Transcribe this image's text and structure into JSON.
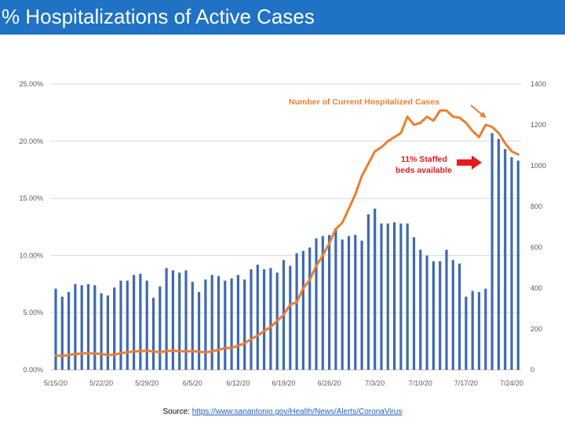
{
  "page": {
    "title": "% Hospitalizations of Active Cases",
    "source_label": "Source:",
    "source_link": "https://www.sanantonio.gov/Health/News/Alerts/CoronaVirus"
  },
  "colors": {
    "title_bar": "#1f72c4",
    "bars": "#3f69b0",
    "line": "#ed7d31",
    "annotation_red": "#e41a1c",
    "annotation_orange": "#ed7d31"
  },
  "chart_data": {
    "type": "bar",
    "title": "",
    "x_tick_labels": [
      "5/15/20",
      "5/22/20",
      "5/29/20",
      "6/5/20",
      "6/12/20",
      "6/19/20",
      "6/26/20",
      "7/3/20",
      "7/10/20",
      "7/17/20",
      "7/24/20"
    ],
    "x_tick_every": 7,
    "y_left": {
      "ticks": [
        "0.00%",
        "5.00%",
        "10.00%",
        "15.00%",
        "20.00%",
        "25.00%"
      ],
      "min": 0,
      "max": 25
    },
    "y_right": {
      "ticks": [
        "0",
        "200",
        "400",
        "600",
        "800",
        "1000",
        "1200",
        "1400"
      ],
      "min": 0,
      "max": 1400
    },
    "grid": "horizontal",
    "series": [
      {
        "axis": "left",
        "kind": "bar",
        "unit": "%",
        "values": [
          7.1,
          6.4,
          6.8,
          7.5,
          7.4,
          7.5,
          7.4,
          6.7,
          6.5,
          7.2,
          7.8,
          7.8,
          8.3,
          8.4,
          7.8,
          6.3,
          7.3,
          8.9,
          8.7,
          8.5,
          8.7,
          7.7,
          6.8,
          7.9,
          8.3,
          8.2,
          7.8,
          8.0,
          8.3,
          7.9,
          8.8,
          9.2,
          8.8,
          8.9,
          8.5,
          9.6,
          9.1,
          10.2,
          10.4,
          10.7,
          11.5,
          11.7,
          11.8,
          12.4,
          11.4,
          11.7,
          11.8,
          11.3,
          13.6,
          14.1,
          12.8,
          12.8,
          12.9,
          12.8,
          12.8,
          11.6,
          10.5,
          10.0,
          9.5,
          9.5,
          10.5,
          9.6,
          9.3,
          6.4,
          6.9,
          6.8,
          7.1,
          20.7,
          20.2,
          19.3,
          18.6,
          18.3
        ]
      },
      {
        "axis": "right",
        "kind": "line",
        "name": "Number of  Current Hospitalized Cases",
        "values": [
          70,
          68,
          72,
          78,
          80,
          82,
          80,
          78,
          72,
          74,
          82,
          86,
          90,
          92,
          93,
          90,
          86,
          92,
          94,
          92,
          90,
          92,
          88,
          86,
          90,
          98,
          106,
          108,
          118,
          130,
          150,
          168,
          190,
          210,
          240,
          270,
          320,
          330,
          400,
          440,
          510,
          560,
          620,
          690,
          720,
          790,
          860,
          950,
          1010,
          1070,
          1090,
          1120,
          1140,
          1160,
          1240,
          1200,
          1210,
          1240,
          1220,
          1270,
          1270,
          1240,
          1235,
          1210,
          1170,
          1140,
          1200,
          1190,
          1160,
          1110,
          1070,
          1055
        ]
      }
    ],
    "annotations": [
      {
        "id": "line_label",
        "text": "Number of  Current Hospitalized Cases"
      },
      {
        "id": "staffed",
        "lines": [
          "11% Staffed",
          "beds available"
        ]
      }
    ]
  }
}
